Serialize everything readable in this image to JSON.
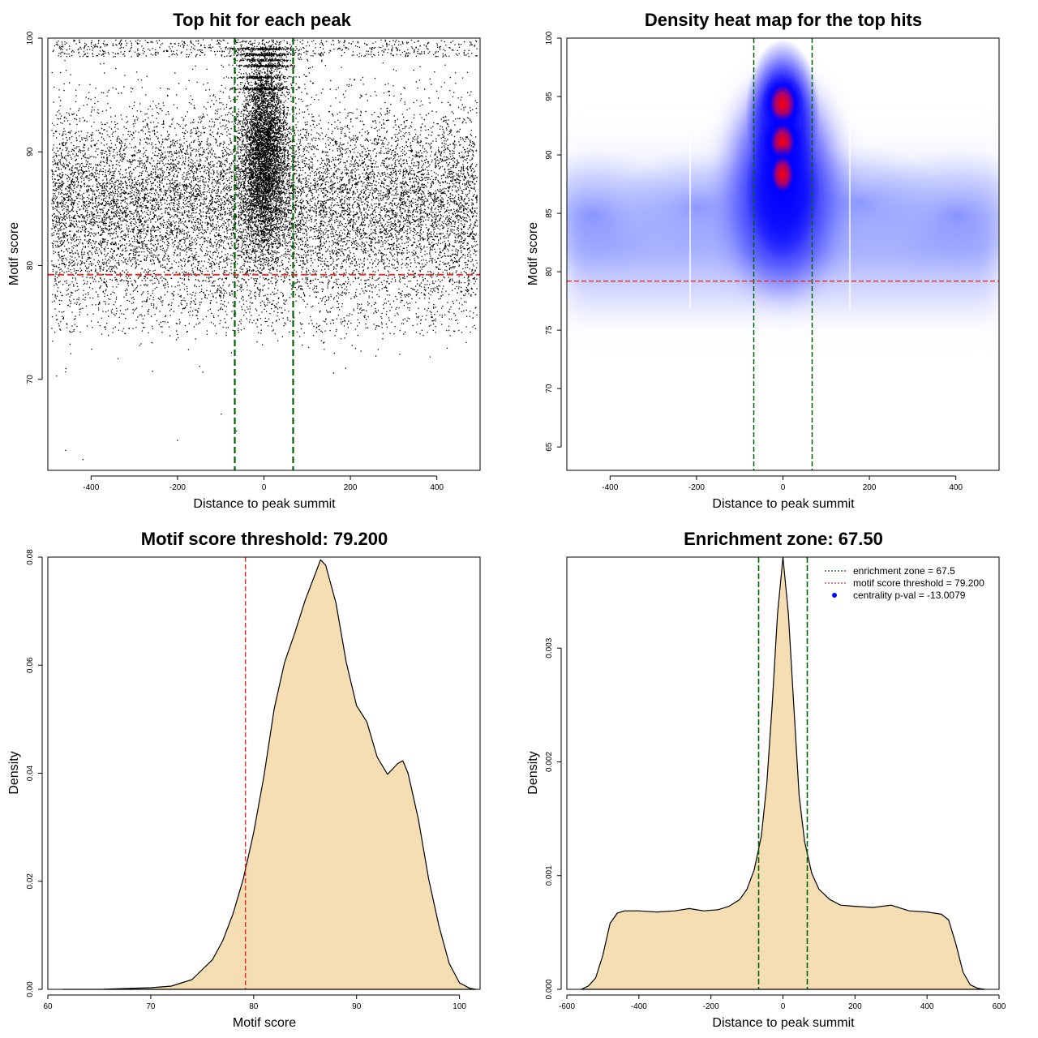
{
  "colors": {
    "zone_line": "#006400",
    "threshold_line": "#dd3333",
    "density_fill": "#f5deb3",
    "point": "#000000",
    "heat_low": "#ffffff",
    "heat_mid": "#0000ff",
    "heat_high": "#ff0000",
    "legend_point": "#0000ff"
  },
  "chart_data": [
    {
      "type": "scatter",
      "title": "Top hit for each peak",
      "xlabel": "Distance to peak summit",
      "ylabel": "Motif score",
      "xlim": [
        -500,
        500
      ],
      "ylim": [
        62,
        100
      ],
      "xticks": [
        -400,
        -200,
        0,
        200,
        400
      ],
      "yticks": [
        70,
        80,
        90,
        100
      ],
      "vlines": [
        -67.5,
        67.5
      ],
      "hline": 79.2,
      "grid": false
    },
    {
      "type": "heatmap",
      "title": "Density heat map for the top hits",
      "xlabel": "Distance to peak summit",
      "ylabel": "Motif score",
      "xlim": [
        -500,
        500
      ],
      "ylim": [
        63,
        100
      ],
      "xticks": [
        -400,
        -200,
        0,
        200,
        400
      ],
      "yticks": [
        65,
        70,
        75,
        80,
        85,
        90,
        95,
        100
      ],
      "vlines": [
        -67.5,
        67.5
      ],
      "hline": 79.2,
      "grid": false
    },
    {
      "type": "area",
      "title": "Motif score threshold: 79.200",
      "xlabel": "Motif score",
      "ylabel": "Density",
      "xlim": [
        60,
        102
      ],
      "ylim": [
        0,
        0.08
      ],
      "xticks": [
        60,
        70,
        80,
        90,
        100
      ],
      "yticks": [
        0.0,
        0.02,
        0.04,
        0.06,
        0.08
      ],
      "ytick_labels": [
        "0.00",
        "0.02",
        "0.04",
        "0.06",
        "0.08"
      ],
      "vline": 79.2,
      "x": [
        61.4,
        65,
        70,
        72,
        74,
        76,
        77,
        78,
        79,
        80,
        81,
        82,
        83,
        84,
        85,
        86,
        86.5,
        87,
        88,
        89,
        90,
        91,
        92,
        93,
        94,
        94.5,
        95,
        96,
        97,
        98,
        99,
        100,
        101,
        101.6
      ],
      "y": [
        0.0,
        0.0,
        0.0003,
        0.0006,
        0.0018,
        0.0055,
        0.009,
        0.014,
        0.0205,
        0.029,
        0.0395,
        0.052,
        0.0605,
        0.066,
        0.072,
        0.077,
        0.0795,
        0.0785,
        0.0715,
        0.0605,
        0.0525,
        0.0495,
        0.043,
        0.0398,
        0.0418,
        0.0423,
        0.04,
        0.0315,
        0.0205,
        0.0118,
        0.0048,
        0.0012,
        0.0002,
        0.0
      ]
    },
    {
      "type": "area",
      "title": "Enrichment zone: 67.50",
      "xlabel": "Distance to peak summit",
      "ylabel": "Density",
      "xlim": [
        -600,
        600
      ],
      "ylim": [
        0,
        0.0038
      ],
      "xticks": [
        -600,
        -400,
        -200,
        0,
        200,
        400,
        600
      ],
      "yticks": [
        0.0,
        0.001,
        0.002,
        0.003
      ],
      "ytick_labels": [
        "0.000",
        "0.001",
        "0.002",
        "0.003"
      ],
      "vlines": [
        -67.5,
        67.5
      ],
      "x": [
        -560,
        -540,
        -520,
        -500,
        -480,
        -460,
        -440,
        -400,
        -350,
        -300,
        -260,
        -220,
        -180,
        -150,
        -120,
        -100,
        -80,
        -60,
        -45,
        -30,
        -15,
        0,
        15,
        30,
        45,
        60,
        80,
        100,
        130,
        160,
        200,
        250,
        300,
        350,
        400,
        440,
        460,
        480,
        500,
        520,
        540,
        560
      ],
      "y": [
        0.0,
        3e-05,
        0.0001,
        0.0003,
        0.00058,
        0.00067,
        0.00069,
        0.00069,
        0.00068,
        0.00069,
        0.00071,
        0.00069,
        0.0007,
        0.00073,
        0.00079,
        0.00088,
        0.00105,
        0.00135,
        0.0018,
        0.0025,
        0.0033,
        0.0038,
        0.0033,
        0.0025,
        0.0017,
        0.0013,
        0.00102,
        0.00088,
        0.00079,
        0.00074,
        0.00073,
        0.00072,
        0.00074,
        0.00069,
        0.00068,
        0.00066,
        0.00061,
        0.0004,
        0.00015,
        4e-05,
        1e-05,
        0.0
      ],
      "legend": [
        {
          "label": "enrichment zone = 67.5",
          "style": "dotted-line",
          "color": "#006400"
        },
        {
          "label": "motif score threshold = 79.200",
          "style": "dotted-line",
          "color": "#dd3333"
        },
        {
          "label": "centrality p-val = -13.0079",
          "style": "point",
          "color": "#0000ff"
        }
      ],
      "legend_position": "top-right"
    }
  ]
}
